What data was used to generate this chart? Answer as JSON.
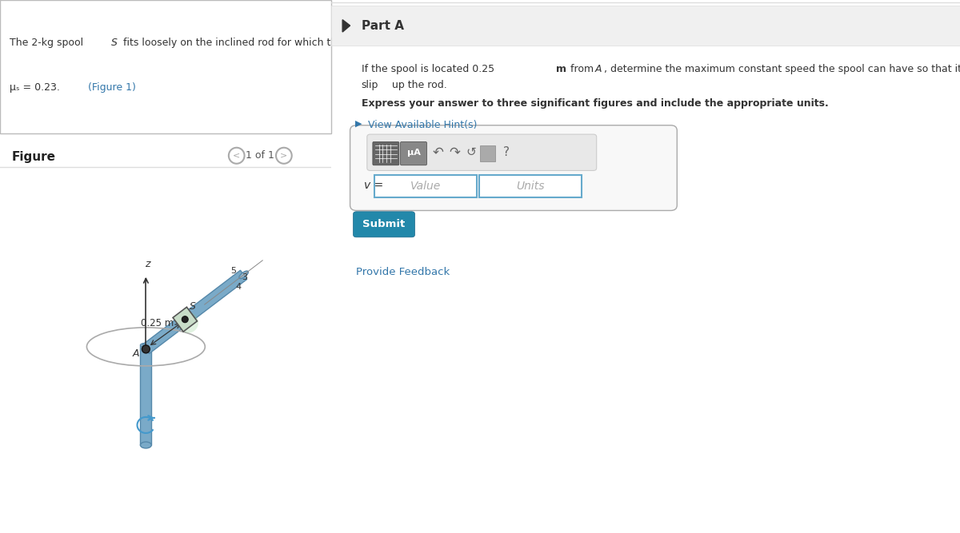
{
  "bg_color": "#ffffff",
  "left_panel_bg": "#eaf4f8",
  "rod_color": "#7aaac8",
  "rod_color2": "#5588aa",
  "spool_color": "#c8ddc8",
  "ellipse_color": "#aaaaaa",
  "arrow_color": "#4499cc",
  "part_a_header_bg": "#f0f0f0",
  "submit_bg": "#2288aa",
  "hint_color": "#3377aa",
  "input_border": "#66aacc",
  "part_a_label": "Part A",
  "question_line1": "If the spool is located 0.25 m from A, determine the maximum constant speed the spool can have so that it does not slip up the rod.",
  "bold_text": "Express your answer to three significant figures and include the appropriate units.",
  "hint_text": "View Available Hint(s)",
  "v_label": "v =",
  "value_placeholder": "Value",
  "units_placeholder": "Units",
  "submit_text": "Submit",
  "feedback_text": "Provide Feedback",
  "figure_label": "Figure",
  "page_label": "1 of 1",
  "dim_025": "0.25 m",
  "label_S": "S",
  "label_A": "A",
  "label_z": "z",
  "ratio_5": "5",
  "ratio_3": "3",
  "ratio_4": "4"
}
